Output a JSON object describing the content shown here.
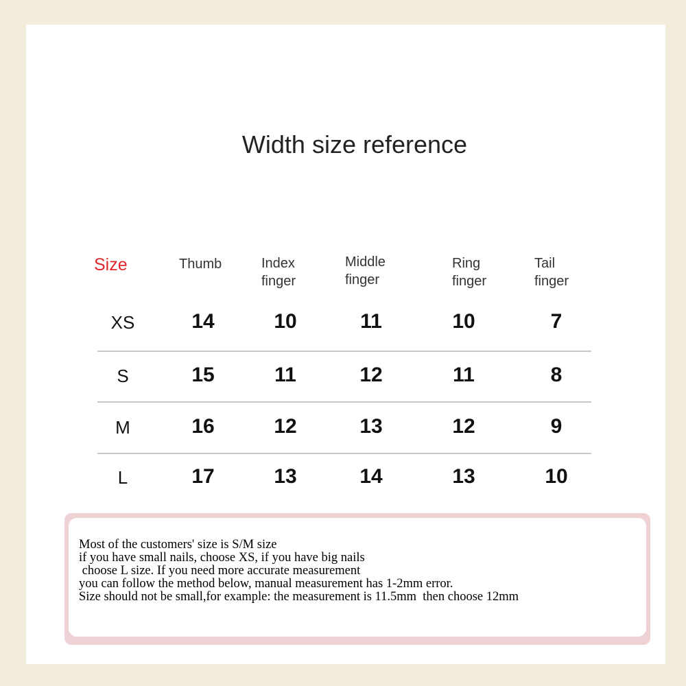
{
  "title": "Width size reference",
  "table": {
    "headers": [
      {
        "lines": [
          "Size"
        ]
      },
      {
        "lines": [
          "Thumb"
        ]
      },
      {
        "lines": [
          "Index",
          "finger"
        ]
      },
      {
        "lines": [
          "Middle",
          "finger"
        ]
      },
      {
        "lines": [
          "Ring",
          "finger"
        ]
      },
      {
        "lines": [
          "Tail",
          "finger"
        ]
      }
    ],
    "rows": [
      {
        "size": "XS",
        "values": [
          "14",
          "10",
          "11",
          "10",
          "7"
        ]
      },
      {
        "size": "S",
        "values": [
          "15",
          "11",
          "12",
          "11",
          "8"
        ]
      },
      {
        "size": "M",
        "values": [
          "16",
          "12",
          "13",
          "12",
          "9"
        ]
      },
      {
        "size": "L",
        "values": [
          "17",
          "13",
          "14",
          "13",
          "10"
        ]
      }
    ]
  },
  "note": {
    "lines": [
      "Most of the customers' size is S/M size",
      "if you have small nails, choose XS, if you have big nails",
      " choose L size. If you need more accurate measurement",
      "you can follow the method below, manual measurement has 1-2mm error.",
      "Size should not be small,for example: the measurement is 11.5mm  then choose 12mm"
    ]
  },
  "colors": {
    "size_header": "#e0262b",
    "frame": "#f2eedb",
    "note_border": "#efd2d6"
  }
}
